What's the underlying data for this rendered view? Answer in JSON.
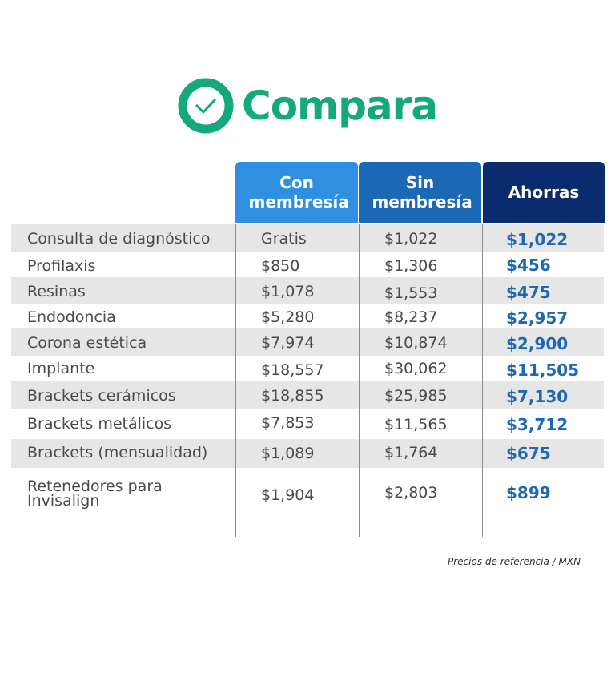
{
  "title": "Compara",
  "colors": {
    "accent": "#14a97c",
    "con_header": "#2f8fe0",
    "sin_header": "#1b68b4",
    "ahorras_header": "#0a2c6e",
    "ahorras_text": "#1d68b4"
  },
  "headers": {
    "con": "Con membresía",
    "sin": "Sin membresía",
    "ahorras": "Ahorras"
  },
  "rows": [
    {
      "service": "Consulta de diagnóstico",
      "con": "Gratis",
      "sin": "$1,022",
      "ahorras": "$1,022"
    },
    {
      "service": "Profilaxis",
      "con": "$850",
      "sin": "$1,306",
      "ahorras": "$456"
    },
    {
      "service": "Resinas",
      "con": "$1,078",
      "sin": "$1,553",
      "ahorras": "$475"
    },
    {
      "service": "Endodoncia",
      "con": "$5,280",
      "sin": "$8,237",
      "ahorras": "$2,957"
    },
    {
      "service": "Corona estética",
      "con": "$7,974",
      "sin": "$10,874",
      "ahorras": "$2,900"
    },
    {
      "service": "Implante",
      "con": "$18,557",
      "sin": "$30,062",
      "ahorras": "$11,505"
    },
    {
      "service": "Brackets cerámicos",
      "con": "$18,855",
      "sin": "$25,985",
      "ahorras": "$7,130"
    },
    {
      "service": "Brackets metálicos",
      "con": "$7,853",
      "sin": "$11,565",
      "ahorras": "$3,712"
    },
    {
      "service": "Brackets (mensualidad)",
      "con": "$1,089",
      "sin": "$1,764",
      "ahorras": "$675"
    },
    {
      "service": "Retenedores para Invisalign",
      "con": "$1,904",
      "sin": "$2,803",
      "ahorras": "$899"
    }
  ],
  "footnote": "Precios de referencia / MXN"
}
